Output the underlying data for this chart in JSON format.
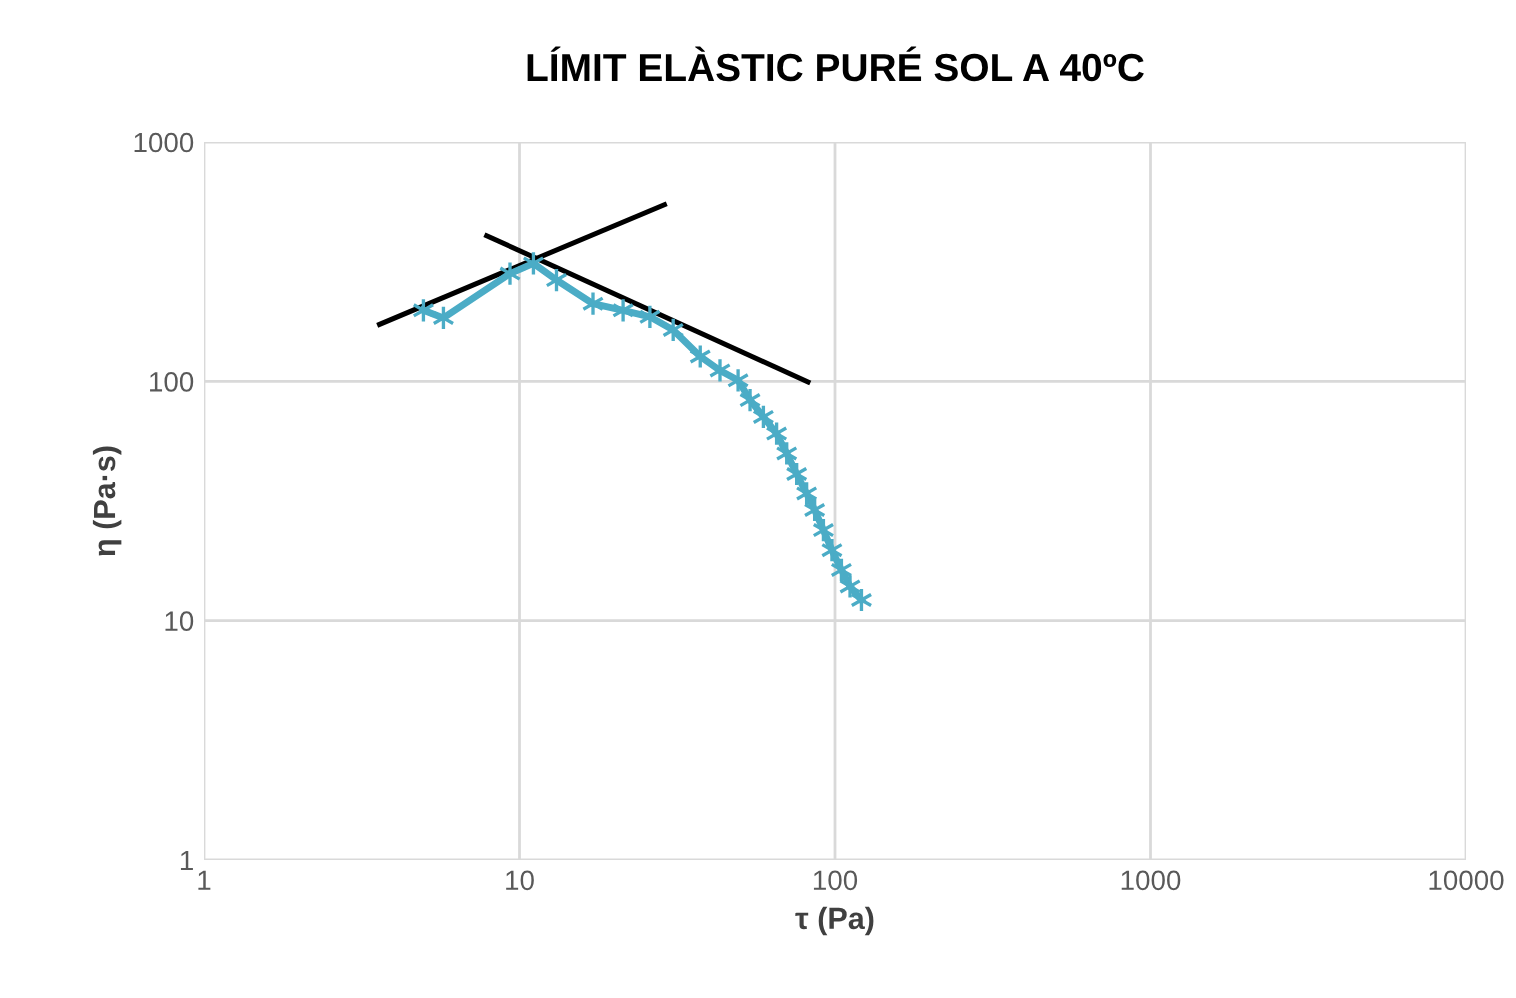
{
  "chart_data": {
    "type": "line",
    "title": "LÍMIT ELÀSTIC PURÉ SOL A 40ºC",
    "xlabel": "τ (Pa)",
    "ylabel": "η (Pa·s)",
    "log": "xy",
    "xlim": [
      1,
      10000
    ],
    "ylim": [
      1,
      1000
    ],
    "xticks": [
      1,
      10,
      100,
      1000,
      10000
    ],
    "yticks": [
      1,
      10,
      100,
      1000
    ],
    "grid": true,
    "series": [
      {
        "color": "#4bacc6",
        "marker": "cross",
        "x": [
          4.96,
          5.74,
          9.33,
          11.07,
          13.1,
          17.1,
          21.3,
          25.9,
          30.7,
          37.4,
          43.2,
          49.3,
          53.8,
          59.3,
          65.3,
          70.3,
          75.6,
          81.3,
          86.2,
          91.9,
          97.8,
          104.8,
          111.6,
          121.3
        ],
        "values": [
          198,
          184,
          282,
          311,
          265,
          211,
          198,
          186,
          164,
          127,
          111,
          101,
          83.5,
          71,
          60.5,
          50,
          41,
          34,
          29,
          23.9,
          19.7,
          16.3,
          13.9,
          12.2
        ]
      },
      {
        "color": "#000000",
        "marker": "none",
        "x": [
          3.6,
          28.8
        ],
        "values": [
          173,
          547
        ]
      },
      {
        "color": "#000000",
        "marker": "none",
        "x": [
          7.87,
          82.1
        ],
        "values": [
          406,
          99.3
        ]
      }
    ]
  }
}
